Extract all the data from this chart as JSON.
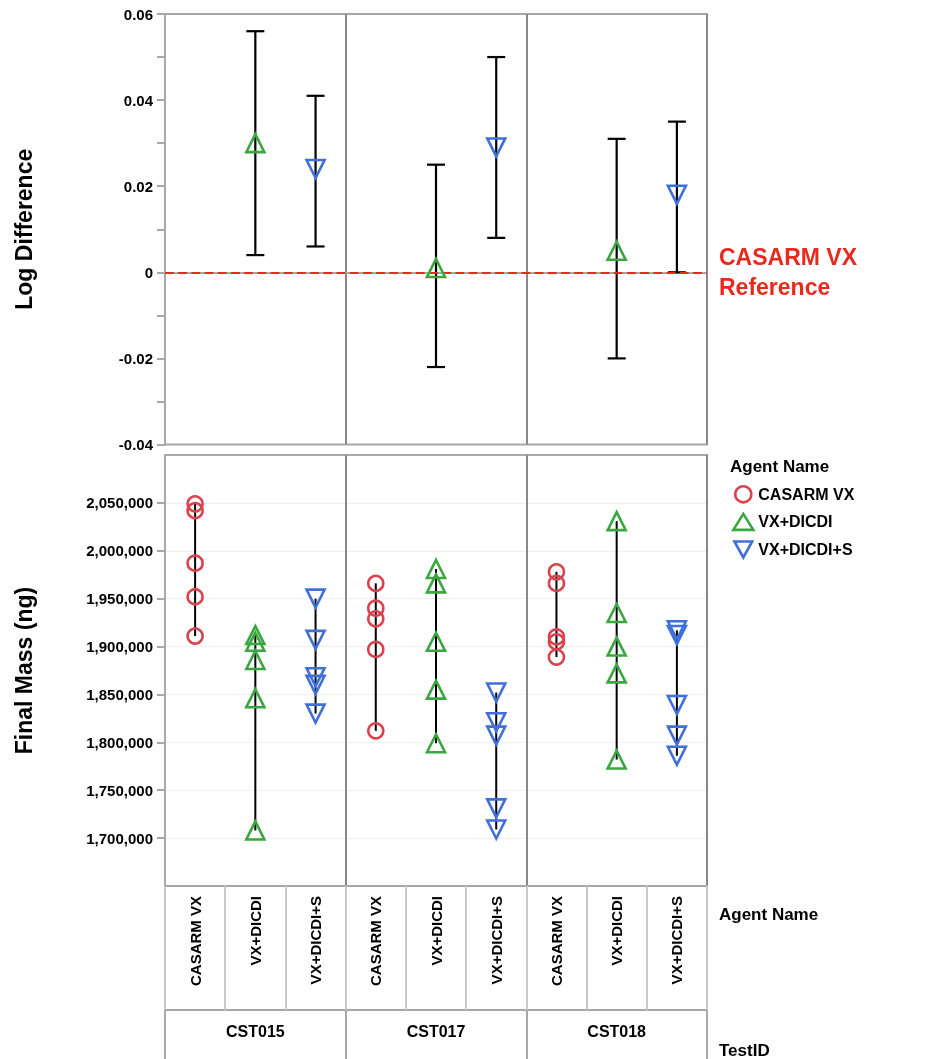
{
  "chart_data": [
    {
      "type": "scatter",
      "ylabel": "Log Difference",
      "categories": [
        null,
        null,
        null,
        null,
        null,
        null,
        null,
        null,
        null
      ],
      "ylim": [
        -0.04,
        0.06
      ],
      "yticks": [
        -0.04,
        {
          "value": -0.03,
          "label": null
        },
        -0.02,
        {
          "value": -0.01,
          "label": null
        },
        0,
        {
          "value": 0.01,
          "label": null
        },
        0.02,
        {
          "value": 0.03,
          "label": null
        },
        0.04,
        {
          "value": 0.05,
          "label": null
        },
        0.06
      ],
      "tick_labels": "y",
      "grid": false,
      "series": [
        {
          "color": "#3aa640",
          "marker": "triangle",
          "values": [
            null,
            0.03,
            null,
            null,
            0.001,
            null,
            null,
            0.005,
            null
          ],
          "errors": [
            null,
            [
              0.004,
              0.056
            ],
            null,
            null,
            [
              -0.022,
              0.025
            ],
            null,
            null,
            [
              -0.02,
              0.031
            ],
            null
          ]
        },
        {
          "color": "#3f6fd8",
          "marker": "triangle-down",
          "values": [
            null,
            null,
            0.024,
            null,
            null,
            0.029,
            null,
            null,
            0.018
          ],
          "errors": [
            null,
            null,
            [
              0.006,
              0.041
            ],
            null,
            null,
            [
              0.008,
              0.05
            ],
            null,
            null,
            [
              0.0,
              0.035
            ]
          ]
        }
      ],
      "ref_lines": [
        {
          "axis": "y",
          "value": 0,
          "label": "CASARM VX Reference",
          "color": "#e8291c",
          "line_style": "dashed"
        }
      ]
    },
    {
      "type": "scatter",
      "ylabel": "Final Mass (ng)",
      "xlabel": "Agent Name",
      "legend_title": "Agent Name",
      "legend": "right",
      "grid": "y",
      "categories": [
        "CASARM VX",
        "VX+DICDI",
        "VX+DICDI+S",
        "CASARM VX",
        "VX+DICDI",
        "VX+DICDI+S",
        "CASARM VX",
        "VX+DICDI",
        "VX+DICDI+S"
      ],
      "ylim": [
        1650000,
        2100000
      ],
      "yticks": [
        {
          "value": 1700000,
          "label": "1,700,000"
        },
        {
          "value": 1750000,
          "label": "1,750,000"
        },
        {
          "value": 1800000,
          "label": "1,800,000"
        },
        {
          "value": 1850000,
          "label": "1,850,000"
        },
        {
          "value": 1900000,
          "label": "1,900,000"
        },
        {
          "value": 1950000,
          "label": "1,950,000"
        },
        {
          "value": 2000000,
          "label": "2,000,000"
        },
        {
          "value": 2050000,
          "label": "2,050,000"
        }
      ],
      "annotations": [
        "CST015",
        "CST017",
        "CST018",
        "TestID"
      ],
      "series": [
        {
          "name": "CASARM VX",
          "color": "#d8434e",
          "marker": "circle",
          "values": [
            2049000,
            null,
            null,
            1966000,
            null,
            null,
            1978000,
            null,
            null
          ]
        },
        {
          "color": "#d8434e",
          "marker": "circle",
          "values": [
            2042000,
            null,
            null,
            1940000,
            null,
            null,
            1966000,
            null,
            null
          ]
        },
        {
          "color": "#d8434e",
          "marker": "circle",
          "values": [
            1987000,
            null,
            null,
            1929000,
            null,
            null,
            1910000,
            null,
            null
          ]
        },
        {
          "color": "#d8434e",
          "marker": "circle",
          "values": [
            1952000,
            null,
            null,
            1897000,
            null,
            null,
            1905000,
            null,
            null
          ]
        },
        {
          "color": "#d8434e",
          "marker": "circle",
          "values": [
            1911000,
            null,
            null,
            1812000,
            null,
            null,
            1889000,
            null,
            null
          ]
        },
        {
          "name": "VX+DICDI",
          "color": "#3aa640",
          "marker": "triangle",
          "values": [
            null,
            1912000,
            null,
            null,
            1981000,
            null,
            null,
            2031000,
            null
          ]
        },
        {
          "color": "#3aa640",
          "marker": "triangle",
          "values": [
            null,
            1905000,
            null,
            null,
            1966000,
            null,
            null,
            1935000,
            null
          ]
        },
        {
          "color": "#3aa640",
          "marker": "triangle",
          "values": [
            null,
            1886000,
            null,
            null,
            1905000,
            null,
            null,
            1900000,
            null
          ]
        },
        {
          "color": "#3aa640",
          "marker": "triangle",
          "values": [
            null,
            1846000,
            null,
            null,
            1855000,
            null,
            null,
            1872000,
            null
          ]
        },
        {
          "color": "#3aa640",
          "marker": "triangle",
          "values": [
            null,
            1708000,
            null,
            null,
            1799000,
            null,
            null,
            1782000,
            null
          ]
        },
        {
          "name": "VX+DICDI+S",
          "color": "#3f6fd8",
          "marker": "triangle-down",
          "values": [
            null,
            null,
            1950000,
            null,
            null,
            1852000,
            null,
            null,
            1917000
          ]
        },
        {
          "color": "#3f6fd8",
          "marker": "triangle-down",
          "values": [
            null,
            null,
            1907000,
            null,
            null,
            1821000,
            null,
            null,
            1912000
          ]
        },
        {
          "color": "#3f6fd8",
          "marker": "triangle-down",
          "values": [
            null,
            null,
            1868000,
            null,
            null,
            1807000,
            null,
            null,
            1839000
          ]
        },
        {
          "color": "#3f6fd8",
          "marker": "triangle-down",
          "values": [
            null,
            null,
            1860000,
            null,
            null,
            1731000,
            null,
            null,
            1807000
          ]
        },
        {
          "color": "#3f6fd8",
          "marker": "triangle-down",
          "values": [
            null,
            null,
            1830000,
            null,
            null,
            1709000,
            null,
            null,
            1786000
          ]
        }
      ]
    }
  ]
}
